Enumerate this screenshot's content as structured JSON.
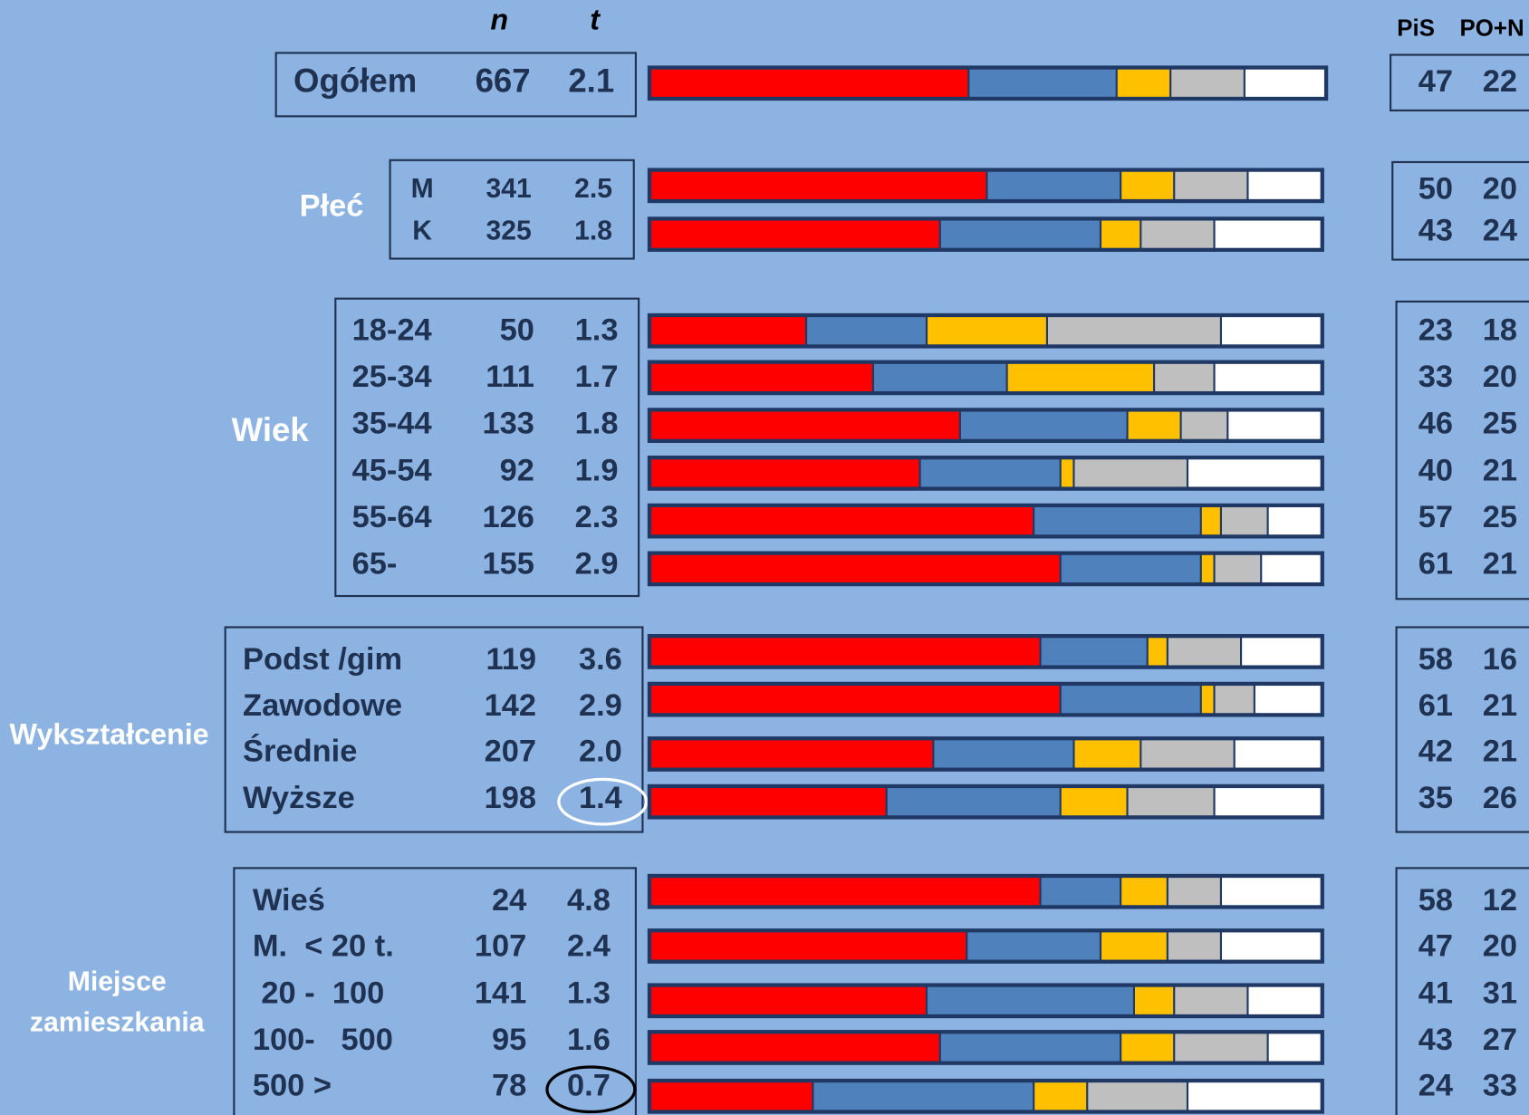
{
  "chart_data": {
    "type": "bar",
    "stacked": true,
    "headers": {
      "n": "n",
      "t": "t",
      "pis": "PiS",
      "po": "PO+N"
    },
    "colors": [
      "#ff0000",
      "#4f81bd",
      "#ffc000",
      "#bfbfbf",
      "#ffffff"
    ],
    "xlim": [
      0,
      100
    ],
    "groups": [
      {
        "rows": [
          {
            "label": "Ogółem",
            "n": 667,
            "t": "2.1",
            "pis": 47,
            "po": 22,
            "segments": [
              47,
              22,
              8,
              11,
              12
            ]
          }
        ]
      },
      {
        "label": [
          "Płeć"
        ],
        "rows": [
          {
            "label": "M",
            "n": 341,
            "t": "2.5",
            "pis": 50,
            "po": 20,
            "segments": [
              50,
              20,
              8,
              11,
              11
            ]
          },
          {
            "label": "K",
            "n": 325,
            "t": "1.8",
            "pis": 43,
            "po": 24,
            "segments": [
              43,
              24,
              6,
              11,
              16
            ]
          }
        ]
      },
      {
        "label": [
          "Wiek"
        ],
        "rows": [
          {
            "label": "18-24",
            "n": 50,
            "t": "1.3",
            "pis": 23,
            "po": 18,
            "segments": [
              23,
              18,
              18,
              26,
              15
            ]
          },
          {
            "label": "25-34",
            "n": 111,
            "t": "1.7",
            "pis": 33,
            "po": 20,
            "segments": [
              33,
              20,
              22,
              9,
              16
            ]
          },
          {
            "label": "35-44",
            "n": 133,
            "t": "1.8",
            "pis": 46,
            "po": 25,
            "segments": [
              46,
              25,
              8,
              7,
              14
            ]
          },
          {
            "label": "45-54",
            "n": 92,
            "t": "1.9",
            "pis": 40,
            "po": 21,
            "segments": [
              40,
              21,
              2,
              17,
              20
            ]
          },
          {
            "label": "55-64",
            "n": 126,
            "t": "2.3",
            "pis": 57,
            "po": 25,
            "segments": [
              57,
              25,
              3,
              7,
              8
            ]
          },
          {
            "label": "65-",
            "n": 155,
            "t": "2.9",
            "pis": 61,
            "po": 21,
            "segments": [
              61,
              21,
              2,
              7,
              9
            ]
          }
        ]
      },
      {
        "label": [
          "Wykształcenie"
        ],
        "rows": [
          {
            "label": "Podst /gim",
            "n": 119,
            "t": "3.6",
            "pis": 58,
            "po": 16,
            "segments": [
              58,
              16,
              3,
              11,
              12
            ]
          },
          {
            "label": "Zawodowe",
            "n": 142,
            "t": "2.9",
            "pis": 61,
            "po": 21,
            "segments": [
              61,
              21,
              2,
              6,
              10
            ]
          },
          {
            "label": "Średnie",
            "n": 207,
            "t": "2.0",
            "pis": 42,
            "po": 21,
            "segments": [
              42,
              21,
              10,
              14,
              13
            ]
          },
          {
            "label": "Wyższe",
            "n": 198,
            "t": "1.4",
            "pis": 35,
            "po": 26,
            "segments": [
              35,
              26,
              10,
              13,
              16
            ],
            "highlight": "#ffffff"
          }
        ]
      },
      {
        "label": [
          "Miejsce",
          "zamieszkania"
        ],
        "rows": [
          {
            "label": "Wieś",
            "n": 24,
            "t": "4.8",
            "pis": 58,
            "po": 12,
            "segments": [
              58,
              12,
              7,
              8,
              15
            ]
          },
          {
            "label": "M.  < 20 t.",
            "n": 107,
            "t": "2.4",
            "pis": 47,
            "po": 20,
            "segments": [
              47,
              20,
              10,
              8,
              15
            ]
          },
          {
            "label": " 20 -  100",
            "n": 141,
            "t": "1.3",
            "pis": 41,
            "po": 31,
            "segments": [
              41,
              31,
              6,
              11,
              11
            ]
          },
          {
            "label": "100-   500",
            "n": 95,
            "t": "1.6",
            "pis": 43,
            "po": 27,
            "segments": [
              43,
              27,
              8,
              14,
              8
            ]
          },
          {
            "label": "500 >",
            "n": 78,
            "t": "0.7",
            "pis": 24,
            "po": 33,
            "segments": [
              24,
              33,
              8,
              15,
              20
            ],
            "highlight": "#000000"
          }
        ]
      }
    ]
  }
}
